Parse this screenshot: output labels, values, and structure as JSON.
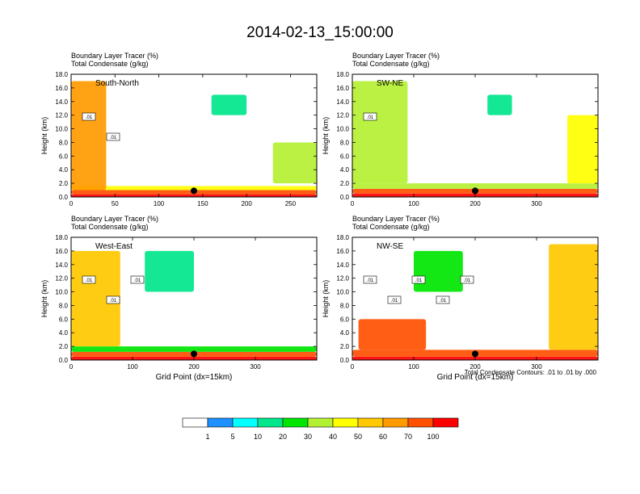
{
  "title": "2014-02-13_15:00:00",
  "note": "Total Condensate Contours: .01 to .01 by .000",
  "chart_data": [
    {
      "type": "heatmap",
      "subtitle_line1": "Boundary Layer Tracer   (%)",
      "subtitle_line2": "Total Condensate   (g/kg)",
      "panel_label": "South-North",
      "xlabel": "",
      "ylabel": "Height (km)",
      "xlim": [
        0,
        280
      ],
      "ylim": [
        0,
        18
      ],
      "xticks": [
        "0",
        "50",
        "100",
        "150",
        "200",
        "250"
      ],
      "yticks": [
        "0.0",
        "2.0",
        "4.0",
        "6.0",
        "8.0",
        "10.0",
        "12.0",
        "14.0",
        "16.0",
        "18.0"
      ],
      "marker_x": 140,
      "contour_labels": [
        ".01",
        ".01"
      ],
      "tracer_regions": [
        {
          "x": [
            0,
            280
          ],
          "y": [
            0,
            0.4
          ],
          "value": 100
        },
        {
          "x": [
            0,
            280
          ],
          "y": [
            0.4,
            1.0
          ],
          "value": 70
        },
        {
          "x": [
            0,
            280
          ],
          "y": [
            1.0,
            1.6
          ],
          "value": 40
        },
        {
          "x": [
            0,
            40
          ],
          "y": [
            1.0,
            17.0
          ],
          "value": 60
        },
        {
          "x": [
            230,
            280
          ],
          "y": [
            2.0,
            8.0
          ],
          "value": 30
        },
        {
          "x": [
            160,
            200
          ],
          "y": [
            12.0,
            15.0
          ],
          "value": 10
        }
      ]
    },
    {
      "type": "heatmap",
      "subtitle_line1": "Boundary Layer Tracer   (%)",
      "subtitle_line2": "Total Condensate   (g/kg)",
      "panel_label": "SW-NE",
      "xlabel": "",
      "ylabel": "Height (km)",
      "xlim": [
        0,
        400
      ],
      "ylim": [
        0,
        18
      ],
      "xticks": [
        "0",
        "100",
        "200",
        "300"
      ],
      "yticks": [
        "0.0",
        "2.0",
        "4.0",
        "6.0",
        "8.0",
        "10.0",
        "12.0",
        "14.0",
        "16.0",
        "18.0"
      ],
      "marker_x": 200,
      "contour_labels": [
        ".01"
      ],
      "tracer_regions": [
        {
          "x": [
            0,
            400
          ],
          "y": [
            0,
            0.5
          ],
          "value": 100
        },
        {
          "x": [
            0,
            400
          ],
          "y": [
            0.5,
            1.2
          ],
          "value": 70
        },
        {
          "x": [
            0,
            400
          ],
          "y": [
            1.2,
            2.0
          ],
          "value": 30
        },
        {
          "x": [
            0,
            90
          ],
          "y": [
            2.0,
            17.0
          ],
          "value": 30
        },
        {
          "x": [
            350,
            400
          ],
          "y": [
            2.0,
            12.0
          ],
          "value": 40
        },
        {
          "x": [
            220,
            260
          ],
          "y": [
            12.0,
            15.0
          ],
          "value": 10
        }
      ]
    },
    {
      "type": "heatmap",
      "subtitle_line1": "Boundary Layer Tracer   (%)",
      "subtitle_line2": "Total Condensate   (g/kg)",
      "panel_label": "West-East",
      "xlabel": "Grid Point (dx=15km)",
      "ylabel": "Height (km)",
      "xlim": [
        0,
        400
      ],
      "ylim": [
        0,
        18
      ],
      "xticks": [
        "0",
        "100",
        "200",
        "300"
      ],
      "yticks": [
        "0.0",
        "2.0",
        "4.0",
        "6.0",
        "8.0",
        "10.0",
        "12.0",
        "14.0",
        "16.0",
        "18.0"
      ],
      "marker_x": 200,
      "contour_labels": [
        ".01",
        ".01",
        ".01"
      ],
      "tracer_regions": [
        {
          "x": [
            0,
            400
          ],
          "y": [
            0,
            0.5
          ],
          "value": 100
        },
        {
          "x": [
            0,
            400
          ],
          "y": [
            0.5,
            1.2
          ],
          "value": 70
        },
        {
          "x": [
            0,
            400
          ],
          "y": [
            1.2,
            2.0
          ],
          "value": 20
        },
        {
          "x": [
            0,
            80
          ],
          "y": [
            2.0,
            16.0
          ],
          "value": 50
        },
        {
          "x": [
            120,
            200
          ],
          "y": [
            10.0,
            16.0
          ],
          "value": 10
        }
      ]
    },
    {
      "type": "heatmap",
      "subtitle_line1": "Boundary Layer Tracer   (%)",
      "subtitle_line2": "Total Condensate   (g/kg)",
      "panel_label": "NW-SE",
      "xlabel": "Grid Point (dx=15km)",
      "ylabel": "Height (km)",
      "xlim": [
        0,
        400
      ],
      "ylim": [
        0,
        18
      ],
      "xticks": [
        "0",
        "100",
        "200",
        "300"
      ],
      "yticks": [
        "0.0",
        "2.0",
        "4.0",
        "6.0",
        "8.0",
        "10.0",
        "12.0",
        "14.0",
        "16.0",
        "18.0"
      ],
      "marker_x": 200,
      "contour_labels": [
        ".01",
        ".01",
        ".01",
        ".01",
        ".01"
      ],
      "tracer_regions": [
        {
          "x": [
            0,
            400
          ],
          "y": [
            0,
            0.5
          ],
          "value": 100
        },
        {
          "x": [
            0,
            400
          ],
          "y": [
            0.5,
            1.5
          ],
          "value": 70
        },
        {
          "x": [
            10,
            120
          ],
          "y": [
            1.5,
            6.0
          ],
          "value": 70
        },
        {
          "x": [
            320,
            400
          ],
          "y": [
            1.5,
            17.0
          ],
          "value": 50
        },
        {
          "x": [
            100,
            180
          ],
          "y": [
            10.0,
            16.0
          ],
          "value": 20
        }
      ]
    }
  ],
  "colorbar": {
    "levels": [
      "1",
      "5",
      "10",
      "20",
      "30",
      "40",
      "50",
      "60",
      "70",
      "100"
    ],
    "colors": [
      "#ffffff",
      "#1e90ff",
      "#00ffff",
      "#00e68c",
      "#00e600",
      "#b4f032",
      "#ffff00",
      "#ffc800",
      "#ff9b00",
      "#ff5000",
      "#ff0000"
    ]
  }
}
